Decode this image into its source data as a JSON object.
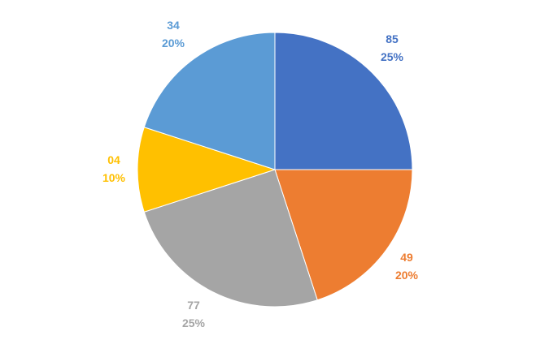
{
  "chart_data": {
    "type": "pie",
    "title": "",
    "legend": "none",
    "start_angle_deg": 0,
    "direction": "clockwise",
    "slices": [
      {
        "label": "85",
        "percent_label": "25%",
        "share": 0.25,
        "color": "#4472C4"
      },
      {
        "label": "49",
        "percent_label": "20%",
        "share": 0.2,
        "color": "#ED7D31"
      },
      {
        "label": "77",
        "percent_label": "25%",
        "share": 0.25,
        "color": "#A5A5A5"
      },
      {
        "label": "04",
        "percent_label": "10%",
        "share": 0.1,
        "color": "#FFC000"
      },
      {
        "label": "34",
        "percent_label": "20%",
        "share": 0.2,
        "color": "#5B9BD5"
      }
    ]
  }
}
